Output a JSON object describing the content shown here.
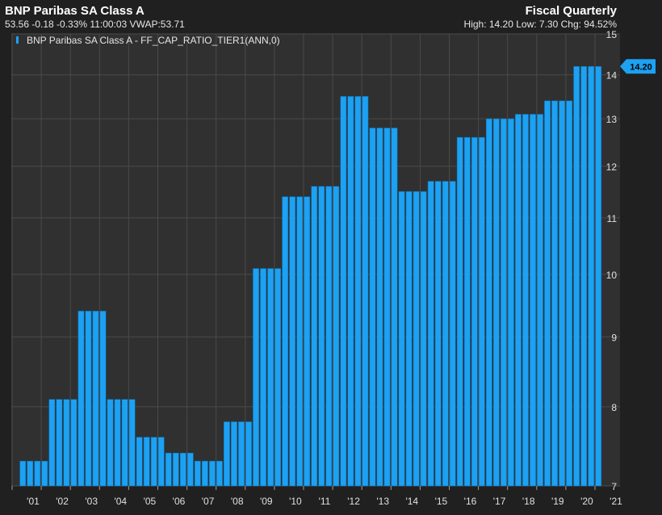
{
  "header": {
    "title": "BNP Paribas SA Class A",
    "quote_line": "53.56 -0.18 -0.33% 11:00:03 VWAP:53.71",
    "period": "Fiscal Quarterly",
    "stats_line": "High: 14.20 Low: 7.30 Chg: 94.52%"
  },
  "colors": {
    "background": "#202020",
    "plot_background": "#303030",
    "grid": "#4a4a4a",
    "bar": "#1da1f2",
    "bar_edge": "#0a6fb3"
  },
  "chart_data": {
    "type": "bar",
    "title": "BNP Paribas SA Class A",
    "legend": {
      "entries": [
        "BNP Paribas SA Class A - FF_CAP_RATIO_TIER1(ANN,0)"
      ],
      "placement": "top-left"
    },
    "scale": "log",
    "ylim": [
      7,
      15
    ],
    "y_ticks": [
      7,
      8,
      9,
      10,
      11,
      12,
      13,
      14,
      15
    ],
    "y_axis_side": "right",
    "x_tick_labels": [
      "'01",
      "'02",
      "'03",
      "'04",
      "'05",
      "'06",
      "'07",
      "'08",
      "'09",
      "'10",
      "'11",
      "'12",
      "'13",
      "'14",
      "'15",
      "'16",
      "'17",
      "'18",
      "'19",
      "'20",
      "'21"
    ],
    "grid": true,
    "last_value_label": "14.20",
    "series": [
      {
        "name": "BNP Paribas SA Class A - FF_CAP_RATIO_TIER1(ANN,0)",
        "annual_values": [
          7.3,
          8.1,
          9.4,
          8.1,
          7.6,
          7.4,
          7.3,
          7.8,
          10.1,
          11.4,
          11.6,
          13.5,
          12.8,
          11.5,
          11.7,
          12.6,
          13.0,
          13.1,
          13.4,
          14.2
        ],
        "quarters_per_value": 4,
        "x_start": "2001-Q1"
      }
    ]
  }
}
